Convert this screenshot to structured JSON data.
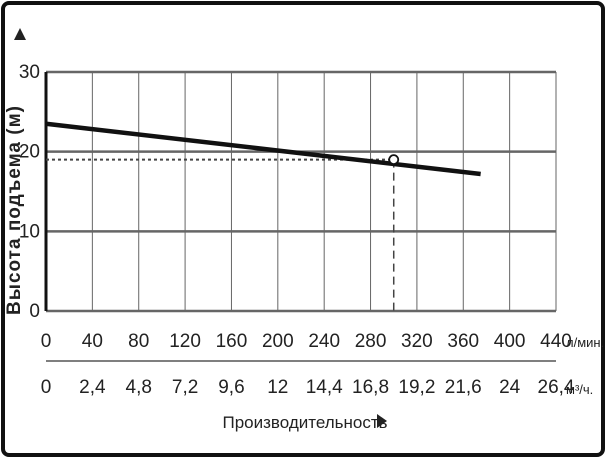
{
  "chart_data": {
    "type": "line",
    "title": "",
    "ylabel": "Высота подъема (м)",
    "xlabel": "Производительность",
    "x_unit_primary": "л/мин.",
    "x_unit_secondary": "м³/ч.",
    "xlim": [
      0,
      440
    ],
    "ylim": [
      0,
      30
    ],
    "x_ticks": [
      0,
      40,
      80,
      120,
      160,
      200,
      240,
      280,
      320,
      360,
      400,
      440
    ],
    "x_tick_labels_primary": [
      "0",
      "40",
      "80",
      "120",
      "160",
      "200",
      "240",
      "280",
      "320",
      "360",
      "400",
      "440"
    ],
    "x_tick_labels_secondary": [
      "0",
      "2,4",
      "4,8",
      "7,2",
      "9,6",
      "12",
      "14,4",
      "16,8",
      "19,2",
      "21,6",
      "24",
      "26,4"
    ],
    "y_ticks": [
      0,
      10,
      20,
      30
    ],
    "y_tick_labels": [
      "0",
      "10",
      "20",
      "30"
    ],
    "grid": true,
    "series": [
      {
        "x": [
          0,
          375
        ],
        "y": [
          23.5,
          17.2
        ]
      }
    ],
    "operating_point": {
      "x": 300,
      "y": 19.0
    }
  }
}
